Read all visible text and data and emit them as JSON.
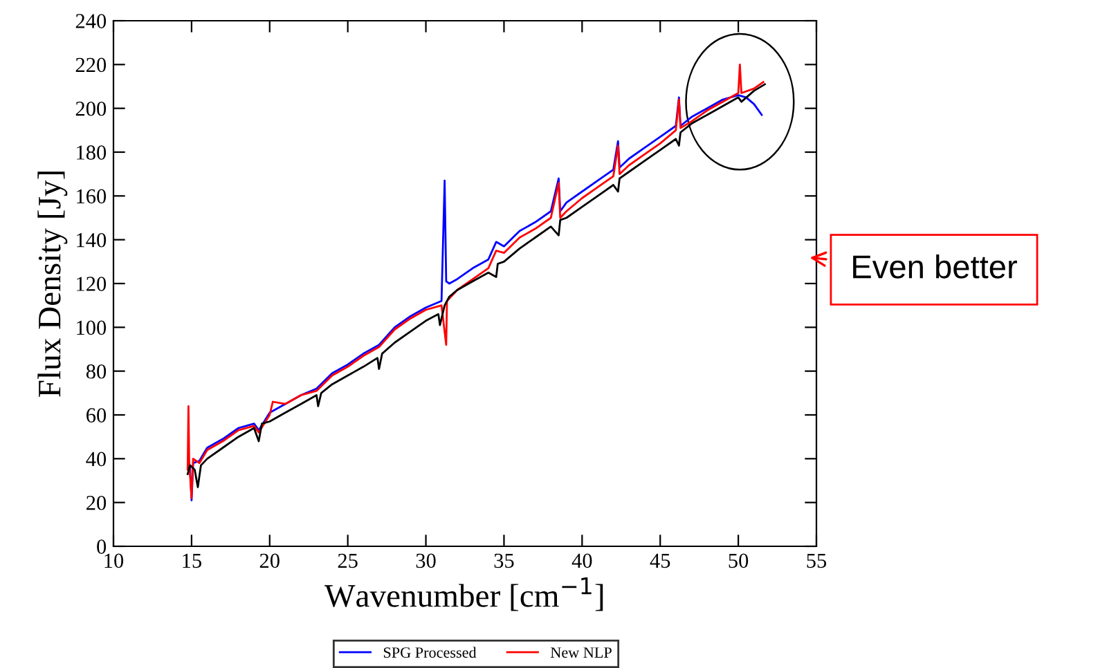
{
  "chart_data": {
    "type": "line",
    "xlabel": "Wavenumber [cm$^{−1}$]",
    "ylabel": "Flux Density [Jy]",
    "xlim": [
      10,
      55
    ],
    "xticks": [
      10,
      15,
      20,
      25,
      30,
      35,
      40,
      45,
      50,
      55
    ],
    "ylim": [
      0,
      240
    ],
    "yticks": [
      0,
      20,
      40,
      60,
      80,
      100,
      120,
      140,
      160,
      180,
      200,
      220,
      240
    ],
    "grid": false,
    "legend": "bottom",
    "marker": "none",
    "line_style": "solid",
    "annotations": [
      "Even better"
    ],
    "series": [
      {
        "name": "SPG Processed",
        "color": "#0000ff",
        "x": [
          14.75,
          14.8,
          14.9,
          15.0,
          15.1,
          15.5,
          16,
          17,
          18,
          19,
          19.3,
          20,
          21,
          22,
          23,
          24,
          25,
          26,
          27,
          28,
          29,
          30,
          31,
          31.2,
          31.3,
          31.5,
          32,
          33,
          34,
          34.5,
          35,
          36,
          37,
          38,
          38.5,
          38.6,
          39,
          40,
          41,
          42,
          42.3,
          42.4,
          43,
          44,
          45,
          46,
          46.2,
          46.3,
          47,
          48,
          49,
          50,
          50.5,
          51,
          51.5
        ],
        "values": [
          36,
          null,
          36,
          21,
          38,
          39,
          45,
          49,
          54,
          56,
          53,
          61,
          65,
          69,
          72,
          79,
          83,
          88,
          92,
          100,
          105,
          109,
          112,
          167,
          121,
          120,
          122,
          127,
          131,
          139,
          137,
          144,
          148,
          153,
          168,
          153,
          157,
          162,
          167,
          172,
          185,
          173,
          177,
          182,
          187,
          192,
          205,
          192,
          196,
          200,
          204,
          206,
          205,
          202,
          197
        ]
      },
      {
        "name": "New NLP",
        "color": "#ff0000",
        "x": [
          14.75,
          14.8,
          14.85,
          15.0,
          15.1,
          15.5,
          16,
          17,
          18,
          19,
          19.3,
          20,
          20.2,
          21,
          22,
          23,
          24,
          25,
          26,
          27,
          28,
          29,
          30,
          31,
          31.3,
          31.35,
          32,
          33,
          34,
          34.5,
          35,
          36,
          37,
          38,
          38.5,
          38.6,
          39,
          40,
          41,
          42,
          42.3,
          42.4,
          43,
          44,
          45,
          46,
          46.2,
          46.3,
          47,
          48,
          49,
          50,
          50.1,
          50.2,
          51,
          51.6
        ],
        "values": [
          35,
          64,
          38,
          22,
          40,
          38,
          44,
          48,
          53,
          55,
          52,
          60,
          66,
          65,
          69,
          71,
          78,
          82,
          87,
          91,
          99,
          104,
          108,
          110,
          92,
          112,
          117,
          122,
          127,
          135,
          134,
          141,
          145,
          150,
          166,
          150,
          153,
          159,
          164,
          169,
          183,
          170,
          174,
          179,
          184,
          190,
          204,
          191,
          194,
          199,
          203,
          207,
          220,
          207,
          209,
          212
        ]
      },
      {
        "name": null,
        "color": "#000000",
        "x": [
          14.75,
          14.9,
          15.2,
          15.4,
          15.6,
          16,
          17,
          18,
          19,
          19.3,
          19.5,
          20,
          21,
          22,
          23,
          23.1,
          23.3,
          24,
          25,
          26,
          26.9,
          27,
          27.2,
          28,
          29,
          30,
          30.8,
          30.9,
          31.2,
          31.5,
          32,
          33,
          34,
          34.5,
          34.6,
          35,
          36,
          37,
          38,
          38.5,
          38.6,
          39,
          40,
          41,
          42,
          42.3,
          42.4,
          43,
          44,
          45,
          46,
          46.2,
          46.3,
          47,
          48,
          49,
          50,
          50.2,
          51,
          51.7
        ],
        "values": [
          33,
          37,
          35,
          27,
          37,
          40,
          45,
          50,
          54,
          48,
          56,
          57,
          61,
          65,
          69,
          64,
          70,
          74,
          78,
          82,
          86,
          81,
          88,
          93,
          98,
          103,
          106,
          101,
          110,
          114,
          117,
          121,
          125,
          123,
          129,
          130,
          136,
          141,
          146,
          142,
          149,
          150,
          155,
          160,
          165,
          162,
          168,
          171,
          176,
          181,
          186,
          183,
          189,
          193,
          197,
          201,
          205,
          203,
          208,
          211
        ]
      }
    ]
  }
}
